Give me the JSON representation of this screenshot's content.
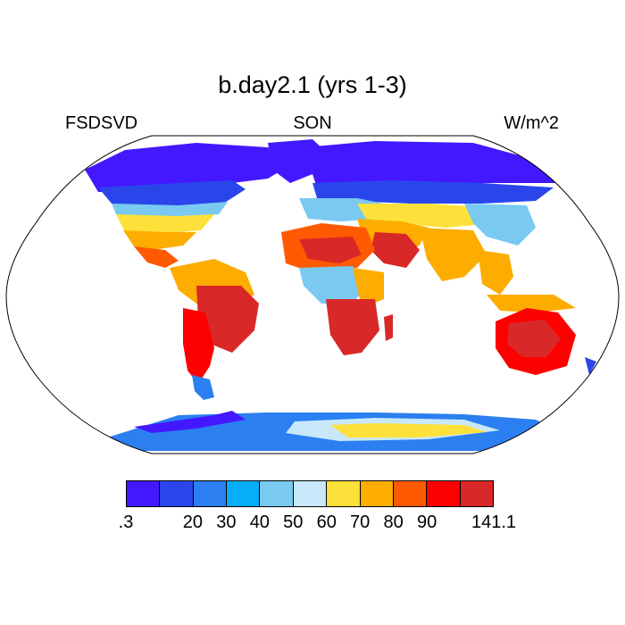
{
  "title": "b.day2.1 (yrs 1-3)",
  "variable": "FSDSVD",
  "season": "SON",
  "units": "W/m^2",
  "colorbar": {
    "colors": [
      "#4318ff",
      "#2a46ea",
      "#2b7ff0",
      "#06adf9",
      "#79c9f0",
      "#c8e8f9",
      "#fde13a",
      "#fdac00",
      "#fe5a01",
      "#fd0000",
      "#d92828"
    ],
    "labels": [
      ".3",
      "20",
      "30",
      "40",
      "50",
      "60",
      "70",
      "80",
      "90",
      "141.1"
    ]
  },
  "map": {
    "projection": "Robinson",
    "ocean_color": "#ffffff"
  }
}
